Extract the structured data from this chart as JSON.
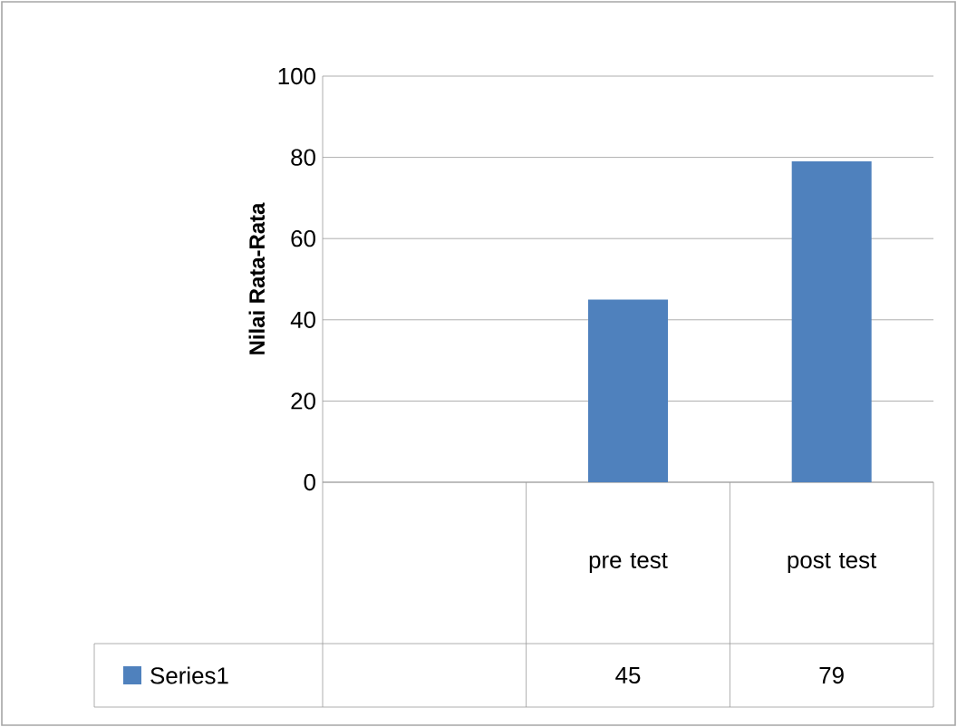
{
  "chart_data": {
    "type": "bar",
    "ylabel": "Nilai Rata-Rata",
    "categories": [
      null,
      "pre test",
      "post test"
    ],
    "series": [
      {
        "name": "Series1",
        "color": "#4f81bd",
        "values": [
          null,
          45,
          79
        ]
      }
    ],
    "ylim": [
      0,
      100
    ],
    "yticks": [
      0,
      20,
      40,
      60,
      80,
      100
    ],
    "grid": "y",
    "legend": "bottom",
    "data_labels": true
  }
}
